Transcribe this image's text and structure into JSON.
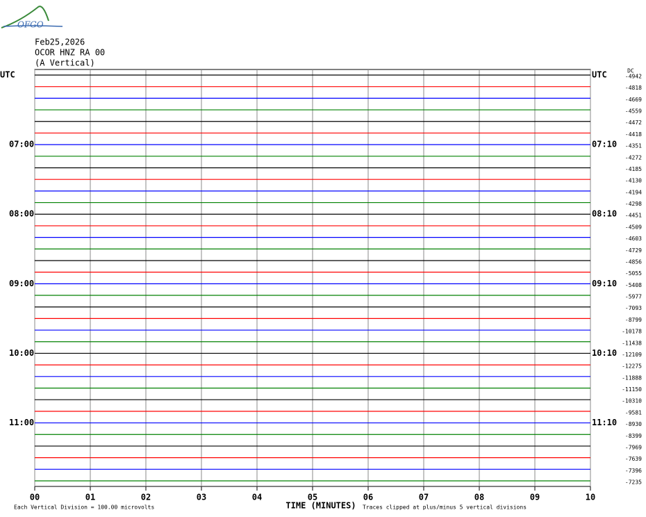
{
  "chart_data": {
    "type": "helicorder",
    "logo": "OFGO",
    "title": "Feb25,2026",
    "station": "OCOR HNZ RA 00",
    "subtitle": "(A Vertical)",
    "dc_header": "DC",
    "xlabel": "TIME (MINUTES)",
    "scale_note": "Each Vertical Division =  100.00 microvolts",
    "clip_note": "Traces clipped at plus/minus 5 vertical divisions",
    "xlim": [
      0,
      10
    ],
    "xticks": [
      {
        "value": 0,
        "label": "00"
      },
      {
        "value": 1,
        "label": "01"
      },
      {
        "value": 2,
        "label": "02"
      },
      {
        "value": 3,
        "label": "03"
      },
      {
        "value": 4,
        "label": "04"
      },
      {
        "value": 5,
        "label": "05"
      },
      {
        "value": 6,
        "label": "06"
      },
      {
        "value": 7,
        "label": "07"
      },
      {
        "value": 8,
        "label": "08"
      },
      {
        "value": 9,
        "label": "09"
      },
      {
        "value": 10,
        "label": "10"
      }
    ],
    "grid": true,
    "colors": [
      "#000000",
      "#ff0000",
      "#0000ff",
      "#008000"
    ],
    "left_labels": [
      "UTC",
      null,
      null,
      null,
      null,
      null,
      "07:00",
      null,
      null,
      null,
      null,
      null,
      "08:00",
      null,
      null,
      null,
      null,
      null,
      "09:00",
      null,
      null,
      null,
      null,
      null,
      "10:00",
      null,
      null,
      null,
      null,
      null,
      "11:00",
      null,
      null,
      null,
      null,
      null
    ],
    "right_labels": [
      "UTC",
      null,
      null,
      null,
      null,
      null,
      "07:10",
      null,
      null,
      null,
      null,
      null,
      "08:10",
      null,
      null,
      null,
      null,
      null,
      "09:10",
      null,
      null,
      null,
      null,
      null,
      "10:10",
      null,
      null,
      null,
      null,
      null,
      "11:10",
      null,
      null,
      null,
      null,
      null
    ],
    "dc_values": [
      -4942,
      -4818,
      -4669,
      -4559,
      -4472,
      -4418,
      -4351,
      -4272,
      -4185,
      -4130,
      -4194,
      -4298,
      -4451,
      -4509,
      -4603,
      -4729,
      -4856,
      -5055,
      -5408,
      -5977,
      -7093,
      -8799,
      -10178,
      -11438,
      -12109,
      -12275,
      -11888,
      -11150,
      -10310,
      -9581,
      -8930,
      -8399,
      -7969,
      -7639,
      -7396,
      -7235
    ]
  }
}
